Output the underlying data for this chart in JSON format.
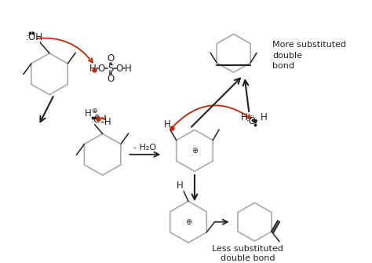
{
  "bg_color": "#ffffff",
  "black": "#222222",
  "red": "#cc2200",
  "gray_ring": "#aaaaaa",
  "more_sub": [
    "More substituted",
    "double",
    "bond"
  ],
  "less_sub": [
    "Less substituted",
    "double bond"
  ],
  "minus_h2o": "- H₂O"
}
